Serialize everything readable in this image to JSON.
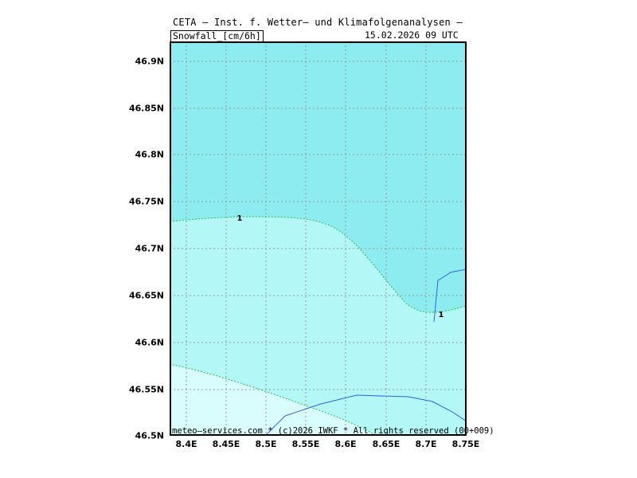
{
  "header": {
    "title": "CETA — Inst. f. Wetter— und Klimafolgenanalysen —",
    "variable_label": "Snowfall_[cm/6h]",
    "datetime_label": "15.02.2026  09  UTC"
  },
  "map": {
    "y_ticks": [
      "46.9N",
      "46.85N",
      "46.8N",
      "46.75N",
      "46.7N",
      "46.65N",
      "46.6N",
      "46.55N",
      "46.5N"
    ],
    "x_ticks": [
      "8.4E",
      "8.45E",
      "8.5E",
      "8.55E",
      "8.6E",
      "8.65E",
      "8.7E",
      "8.75E"
    ],
    "contour_labels": [
      "1",
      "1"
    ],
    "colors": {
      "high_fill": "#8cecef",
      "mid_fill": "#b3f7f7",
      "low_fill": "#d9fdfd",
      "contour_line": "#2fbf4f",
      "grid": "#999999",
      "river": "#3a5cf0"
    }
  },
  "footer": {
    "credit": "meteo—services.com * (c)2026 IWKF * All rights reserved (00+009)"
  }
}
